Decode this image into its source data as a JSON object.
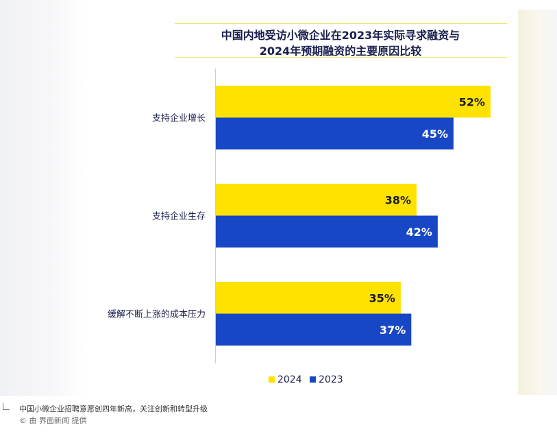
{
  "chart_data": {
    "type": "bar",
    "orientation": "horizontal",
    "title": [
      "中国内地受访小微企业在2023年实际寻求融资与",
      "2024年预期融资的主要原因比较"
    ],
    "categories": [
      "支持企业增长",
      "支持企业生存",
      "缓解不断上涨的成本压力"
    ],
    "series": [
      {
        "name": "2024",
        "values": [
          52,
          38,
          35
        ],
        "labels": [
          "52%",
          "38%",
          "35%"
        ],
        "color": "#ffe200"
      },
      {
        "name": "2023",
        "values": [
          45,
          42,
          37
        ],
        "labels": [
          "45%",
          "42%",
          "37%"
        ],
        "color": "#1847c6"
      }
    ],
    "xlim": [
      0,
      52
    ],
    "grid": false,
    "legend_position": "bottom"
  },
  "caption": {
    "text": "中国小微企业招聘意愿创四年新高，关注创新和转型升级",
    "credit": "© 由 界面新闻 提供"
  }
}
